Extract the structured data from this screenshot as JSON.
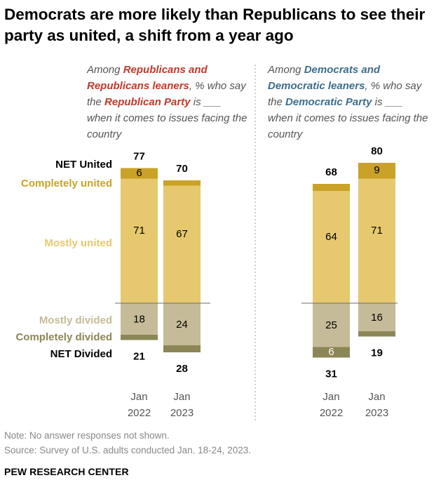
{
  "title": "Democrats are more likely than Republicans to see their party as united, a shift from a year ago",
  "subtitle_rep": {
    "pre": "Among ",
    "highlight1": "Republicans and Republicans leaners",
    "mid": ", % who say the ",
    "highlight2": "Republican Party",
    "post": " is ___ when it comes to issues facing the country"
  },
  "subtitle_dem": {
    "pre": "Among ",
    "highlight1": "Democrats and Democratic leaners",
    "mid": ", % who say the ",
    "highlight2": "Democratic Party",
    "post": " is ___ when it comes to issues facing the country"
  },
  "note": "Note: No answer responses not shown.",
  "source": "Source: Survey of U.S. adults conducted Jan. 18-24, 2023.",
  "brand": "PEW RESEARCH CENTER",
  "colors": {
    "completely_united": "#c9a227",
    "mostly_united": "#e6c86e",
    "mostly_divided": "#c5bb98",
    "completely_divided": "#8b8656",
    "rep_highlight": "#c0392b",
    "dem_highlight": "#3e6d8c"
  },
  "chart_data": {
    "type": "bar",
    "stacked": "diverging",
    "row_labels": {
      "net_united": "NET United",
      "completely_united": "Completely united",
      "mostly_united": "Mostly united",
      "mostly_divided": "Mostly divided",
      "completely_divided": "Completely divided",
      "net_divided": "NET Divided"
    },
    "categories": [
      {
        "month": "Jan",
        "year": "2022"
      },
      {
        "month": "Jan",
        "year": "2023"
      }
    ],
    "groups": [
      {
        "name": "Republicans",
        "series": [
          {
            "name": "Completely united",
            "values": [
              6,
              3
            ],
            "labels": [
              "6",
              ""
            ]
          },
          {
            "name": "Mostly united",
            "values": [
              71,
              67
            ],
            "labels": [
              "71",
              "67"
            ]
          },
          {
            "name": "Mostly divided",
            "values": [
              18,
              24
            ],
            "labels": [
              "18",
              "24"
            ]
          },
          {
            "name": "Completely divided",
            "values": [
              3,
              4
            ],
            "labels": [
              "",
              ""
            ]
          }
        ],
        "net_united": [
          77,
          70
        ],
        "net_divided": [
          21,
          28
        ]
      },
      {
        "name": "Democrats",
        "series": [
          {
            "name": "Completely united",
            "values": [
              4,
              9
            ],
            "labels": [
              "",
              "9"
            ]
          },
          {
            "name": "Mostly united",
            "values": [
              64,
              71
            ],
            "labels": [
              "64",
              "71"
            ]
          },
          {
            "name": "Mostly divided",
            "values": [
              25,
              16
            ],
            "labels": [
              "25",
              "16"
            ]
          },
          {
            "name": "Completely divided",
            "values": [
              6,
              3
            ],
            "labels": [
              "6",
              ""
            ]
          }
        ],
        "net_united": [
          68,
          80
        ],
        "net_divided": [
          31,
          19
        ]
      }
    ]
  }
}
